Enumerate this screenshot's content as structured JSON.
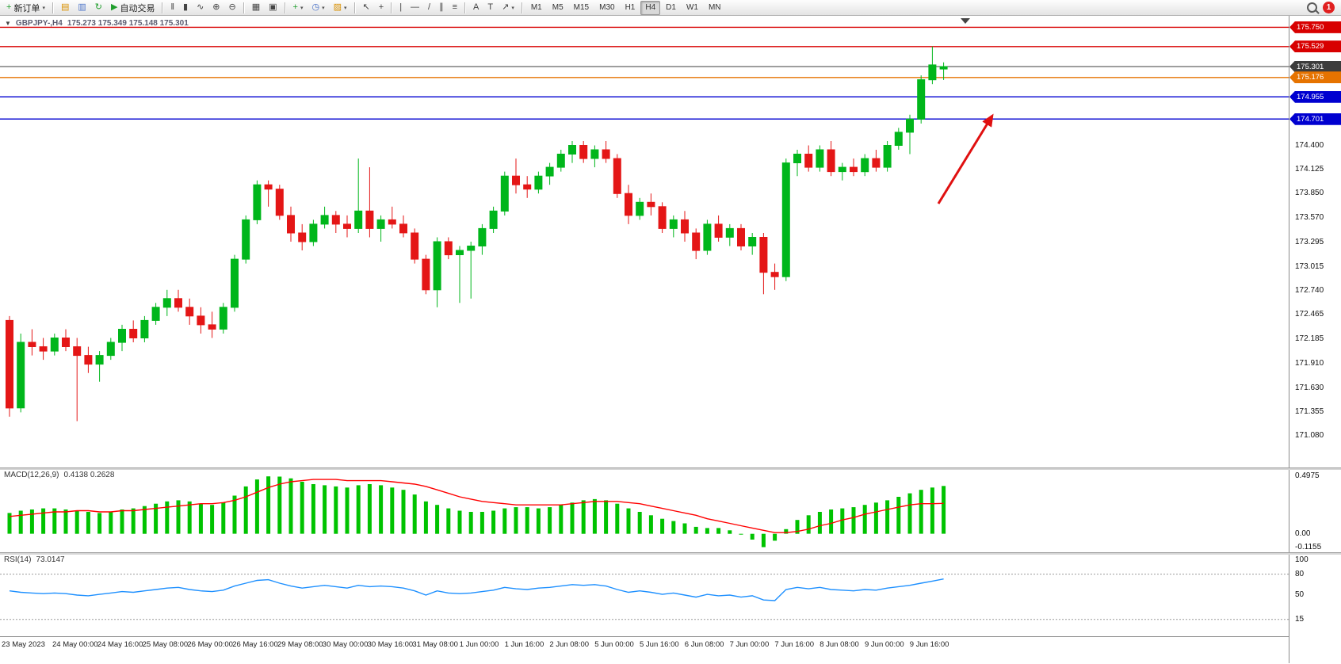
{
  "window": {
    "badge_count": "1"
  },
  "toolbar": {
    "new_order_label": "新订单",
    "auto_trading_label": "自动交易",
    "text_tool_label": "A",
    "label_tool_label": "T",
    "timeframes": [
      "M1",
      "M5",
      "M15",
      "M30",
      "H1",
      "H4",
      "D1",
      "W1",
      "MN"
    ],
    "active_timeframe": "H4"
  },
  "icons": {
    "new_order": "+",
    "charts": "▤",
    "profiles": "▥",
    "refresh": "↻",
    "play": "▶",
    "bars": "‖",
    "candles": "▮",
    "line_chart": "∿",
    "zoom_in": "⊕",
    "zoom_out": "⊖",
    "tile_windows": "▦",
    "cascade_windows": "▣",
    "indicators": "+",
    "periods": "◷",
    "templates": "▨",
    "cursor": "↖",
    "crosshair": "+",
    "vertical_line": "|",
    "horizontal_line": "—",
    "trendline": "/",
    "channel": "∥",
    "fibonacci": "≡",
    "arrows": "↗",
    "dropdown": "▾",
    "one_click": "▼"
  },
  "chart": {
    "symbol_title": "GBPJPY-,H4",
    "ohlc_text": "175.273 175.349 175.148 175.301",
    "price_scale_labels": [
      "174.400",
      "174.125",
      "173.850",
      "173.570",
      "173.295",
      "173.015",
      "172.740",
      "172.465",
      "172.185",
      "171.910",
      "171.630",
      "171.355",
      "171.080"
    ],
    "levels": [
      {
        "name": "resistance-line-1",
        "price": 175.75,
        "label": "175.750",
        "color": "#d80000",
        "current": false
      },
      {
        "name": "resistance-line-2",
        "price": 175.529,
        "label": "175.529",
        "color": "#d80000",
        "current": false
      },
      {
        "name": "current-price",
        "price": 175.301,
        "label": "175.301",
        "color": "#3c3c3c",
        "current": true
      },
      {
        "name": "orange-level",
        "price": 175.176,
        "label": "175.176",
        "color": "#e67300",
        "current": false
      },
      {
        "name": "support-line-1",
        "price": 174.955,
        "label": "174.955",
        "color": "#0000d0",
        "current": false
      },
      {
        "name": "support-line-2",
        "price": 174.701,
        "label": "174.701",
        "color": "#0000d0",
        "current": false
      }
    ],
    "time_labels": [
      {
        "text": "23 May 2023",
        "index": 0
      },
      {
        "text": "24 May 00:00",
        "index": 6
      },
      {
        "text": "24 May 16:00",
        "index": 10
      },
      {
        "text": "25 May 08:00",
        "index": 14
      },
      {
        "text": "26 May 00:00",
        "index": 18
      },
      {
        "text": "26 May 16:00",
        "index": 22
      },
      {
        "text": "29 May 08:00",
        "index": 26
      },
      {
        "text": "30 May 00:00",
        "index": 30
      },
      {
        "text": "30 May 16:00",
        "index": 34
      },
      {
        "text": "31 May 08:00",
        "index": 38
      },
      {
        "text": "1 Jun 00:00",
        "index": 42
      },
      {
        "text": "1 Jun 16:00",
        "index": 46
      },
      {
        "text": "2 Jun 08:00",
        "index": 50
      },
      {
        "text": "5 Jun 00:00",
        "index": 54
      },
      {
        "text": "5 Jun 16:00",
        "index": 58
      },
      {
        "text": "6 Jun 08:00",
        "index": 62
      },
      {
        "text": "7 Jun 00:00",
        "index": 66
      },
      {
        "text": "7 Jun 16:00",
        "index": 70
      },
      {
        "text": "8 Jun 08:00",
        "index": 74
      },
      {
        "text": "9 Jun 00:00",
        "index": 78
      },
      {
        "text": "9 Jun 16:00",
        "index": 82
      }
    ]
  },
  "macd": {
    "label": "MACD(12,26,9)",
    "values_text": "0.4138 0.2628",
    "scale_labels": [
      "0.4975",
      "0.00",
      "-0.1155"
    ]
  },
  "rsi": {
    "label": "RSI(14)",
    "value_text": "73.0147",
    "scale_labels": [
      "100",
      "80",
      "50",
      "15"
    ],
    "levels": [
      80,
      15
    ]
  },
  "annotation": {
    "arrow_color": "#e01010",
    "direction": "up-right"
  },
  "chart_data": {
    "type": "candlestick",
    "symbol": "GBPJPY",
    "timeframe": "H4",
    "bull_color": "#00b61b",
    "bear_color": "#e41616",
    "y_range": [
      170.72,
      175.88
    ],
    "candles": [
      [
        172.4,
        172.45,
        171.3,
        171.4
      ],
      [
        171.4,
        172.25,
        171.35,
        172.15
      ],
      [
        172.15,
        172.3,
        172.0,
        172.1
      ],
      [
        172.1,
        172.2,
        171.95,
        172.05
      ],
      [
        172.05,
        172.25,
        172.0,
        172.2
      ],
      [
        172.2,
        172.3,
        172.05,
        172.1
      ],
      [
        172.1,
        172.2,
        171.25,
        172.0
      ],
      [
        172.0,
        172.1,
        171.8,
        171.9
      ],
      [
        171.9,
        172.05,
        171.7,
        172.0
      ],
      [
        172.0,
        172.2,
        171.95,
        172.15
      ],
      [
        172.15,
        172.35,
        172.05,
        172.3
      ],
      [
        172.3,
        172.4,
        172.15,
        172.2
      ],
      [
        172.2,
        172.45,
        172.15,
        172.4
      ],
      [
        172.4,
        172.6,
        172.35,
        172.55
      ],
      [
        172.55,
        172.75,
        172.45,
        172.65
      ],
      [
        172.65,
        172.75,
        172.5,
        172.55
      ],
      [
        172.55,
        172.65,
        172.35,
        172.45
      ],
      [
        172.45,
        172.55,
        172.25,
        172.35
      ],
      [
        172.35,
        172.5,
        172.2,
        172.3
      ],
      [
        172.3,
        172.6,
        172.25,
        172.55
      ],
      [
        172.55,
        173.15,
        172.5,
        173.1
      ],
      [
        173.1,
        173.6,
        173.05,
        173.55
      ],
      [
        173.55,
        174.0,
        173.5,
        173.95
      ],
      [
        173.95,
        174.0,
        173.7,
        173.9
      ],
      [
        173.9,
        173.95,
        173.55,
        173.6
      ],
      [
        173.6,
        173.7,
        173.3,
        173.4
      ],
      [
        173.4,
        173.5,
        173.2,
        173.3
      ],
      [
        173.3,
        173.55,
        173.25,
        173.5
      ],
      [
        173.5,
        173.7,
        173.45,
        173.6
      ],
      [
        173.6,
        173.65,
        173.4,
        173.5
      ],
      [
        173.5,
        173.6,
        173.35,
        173.45
      ],
      [
        173.45,
        174.25,
        173.4,
        173.65
      ],
      [
        173.65,
        174.15,
        173.35,
        173.45
      ],
      [
        173.45,
        173.6,
        173.3,
        173.55
      ],
      [
        173.55,
        173.7,
        173.45,
        173.5
      ],
      [
        173.5,
        173.6,
        173.35,
        173.4
      ],
      [
        173.4,
        173.45,
        173.05,
        173.1
      ],
      [
        173.1,
        173.15,
        172.7,
        172.75
      ],
      [
        172.75,
        173.35,
        172.55,
        173.3
      ],
      [
        173.3,
        173.35,
        173.1,
        173.15
      ],
      [
        173.15,
        173.25,
        172.6,
        173.2
      ],
      [
        173.2,
        173.3,
        172.65,
        173.25
      ],
      [
        173.25,
        173.5,
        173.15,
        173.45
      ],
      [
        173.45,
        173.7,
        173.4,
        173.65
      ],
      [
        173.65,
        174.1,
        173.6,
        174.05
      ],
      [
        174.05,
        174.25,
        173.85,
        173.95
      ],
      [
        173.95,
        174.05,
        173.8,
        173.9
      ],
      [
        173.9,
        174.1,
        173.85,
        174.05
      ],
      [
        174.05,
        174.2,
        173.95,
        174.15
      ],
      [
        174.15,
        174.35,
        174.1,
        174.3
      ],
      [
        174.3,
        174.45,
        174.2,
        174.4
      ],
      [
        174.4,
        174.45,
        174.2,
        174.25
      ],
      [
        174.25,
        174.4,
        174.15,
        174.35
      ],
      [
        174.35,
        174.45,
        174.2,
        174.25
      ],
      [
        174.25,
        174.3,
        173.8,
        173.85
      ],
      [
        173.85,
        173.95,
        173.5,
        173.6
      ],
      [
        173.6,
        173.8,
        173.55,
        173.75
      ],
      [
        173.75,
        173.85,
        173.6,
        173.7
      ],
      [
        173.7,
        173.75,
        173.4,
        173.45
      ],
      [
        173.45,
        173.6,
        173.35,
        173.55
      ],
      [
        173.55,
        173.65,
        173.3,
        173.4
      ],
      [
        173.4,
        173.45,
        173.1,
        173.2
      ],
      [
        173.2,
        173.55,
        173.15,
        173.5
      ],
      [
        173.5,
        173.6,
        173.3,
        173.35
      ],
      [
        173.35,
        173.5,
        173.25,
        173.45
      ],
      [
        173.45,
        173.5,
        173.2,
        173.25
      ],
      [
        173.25,
        173.4,
        173.15,
        173.35
      ],
      [
        173.35,
        173.4,
        172.7,
        172.95
      ],
      [
        172.95,
        173.05,
        172.75,
        172.9
      ],
      [
        172.9,
        174.25,
        172.85,
        174.2
      ],
      [
        174.2,
        174.35,
        174.05,
        174.3
      ],
      [
        174.3,
        174.4,
        174.1,
        174.15
      ],
      [
        174.15,
        174.4,
        174.1,
        174.35
      ],
      [
        174.35,
        174.45,
        174.05,
        174.1
      ],
      [
        174.1,
        174.2,
        174.0,
        174.15
      ],
      [
        174.15,
        174.25,
        174.05,
        174.1
      ],
      [
        174.1,
        174.3,
        174.05,
        174.25
      ],
      [
        174.25,
        174.35,
        174.1,
        174.15
      ],
      [
        174.15,
        174.45,
        174.1,
        174.4
      ],
      [
        174.4,
        174.6,
        174.35,
        174.55
      ],
      [
        174.55,
        174.75,
        174.3,
        174.7
      ],
      [
        174.7,
        175.2,
        174.65,
        175.15
      ],
      [
        175.15,
        175.53,
        175.1,
        175.32
      ],
      [
        175.273,
        175.349,
        175.148,
        175.301
      ]
    ],
    "macd": {
      "histogram_color": "#00c300",
      "signal_color": "#ff0000",
      "range": [
        -0.16,
        0.56
      ],
      "histogram": [
        0.18,
        0.2,
        0.21,
        0.22,
        0.22,
        0.21,
        0.2,
        0.19,
        0.18,
        0.19,
        0.21,
        0.22,
        0.24,
        0.26,
        0.28,
        0.29,
        0.28,
        0.26,
        0.25,
        0.27,
        0.33,
        0.41,
        0.47,
        0.497,
        0.495,
        0.48,
        0.45,
        0.43,
        0.42,
        0.41,
        0.4,
        0.42,
        0.43,
        0.42,
        0.4,
        0.38,
        0.34,
        0.28,
        0.25,
        0.22,
        0.2,
        0.19,
        0.19,
        0.2,
        0.22,
        0.23,
        0.23,
        0.22,
        0.23,
        0.25,
        0.27,
        0.29,
        0.3,
        0.29,
        0.26,
        0.22,
        0.19,
        0.16,
        0.13,
        0.11,
        0.09,
        0.06,
        0.05,
        0.05,
        0.03,
        0.0,
        -0.05,
        -0.115,
        -0.06,
        0.04,
        0.12,
        0.16,
        0.19,
        0.21,
        0.22,
        0.23,
        0.25,
        0.27,
        0.29,
        0.32,
        0.35,
        0.38,
        0.4,
        0.4138
      ],
      "signal": [
        0.15,
        0.16,
        0.17,
        0.18,
        0.19,
        0.19,
        0.2,
        0.2,
        0.19,
        0.19,
        0.2,
        0.2,
        0.21,
        0.22,
        0.23,
        0.24,
        0.25,
        0.26,
        0.26,
        0.27,
        0.29,
        0.32,
        0.36,
        0.4,
        0.43,
        0.45,
        0.46,
        0.47,
        0.47,
        0.47,
        0.46,
        0.46,
        0.46,
        0.46,
        0.45,
        0.44,
        0.43,
        0.41,
        0.38,
        0.35,
        0.32,
        0.3,
        0.28,
        0.27,
        0.26,
        0.25,
        0.25,
        0.25,
        0.25,
        0.25,
        0.26,
        0.27,
        0.28,
        0.28,
        0.28,
        0.27,
        0.26,
        0.24,
        0.22,
        0.2,
        0.18,
        0.16,
        0.13,
        0.11,
        0.09,
        0.07,
        0.05,
        0.03,
        0.01,
        0.01,
        0.02,
        0.04,
        0.07,
        0.09,
        0.12,
        0.14,
        0.17,
        0.19,
        0.21,
        0.23,
        0.25,
        0.26,
        0.26,
        0.2628
      ]
    },
    "rsi": {
      "color": "#1e90ff",
      "range": [
        0,
        100
      ],
      "values": [
        56,
        54,
        53,
        52,
        53,
        52,
        50,
        49,
        51,
        53,
        55,
        54,
        56,
        58,
        60,
        61,
        58,
        56,
        55,
        57,
        63,
        67,
        71,
        72,
        67,
        63,
        60,
        62,
        64,
        62,
        60,
        64,
        62,
        63,
        62,
        60,
        56,
        50,
        56,
        53,
        52,
        53,
        55,
        57,
        61,
        59,
        58,
        60,
        61,
        63,
        65,
        64,
        65,
        63,
        58,
        54,
        56,
        54,
        51,
        53,
        50,
        47,
        51,
        49,
        50,
        47,
        49,
        43,
        42,
        58,
        61,
        59,
        61,
        58,
        57,
        56,
        58,
        57,
        60,
        62,
        64,
        67,
        70,
        73.0147
      ]
    }
  }
}
